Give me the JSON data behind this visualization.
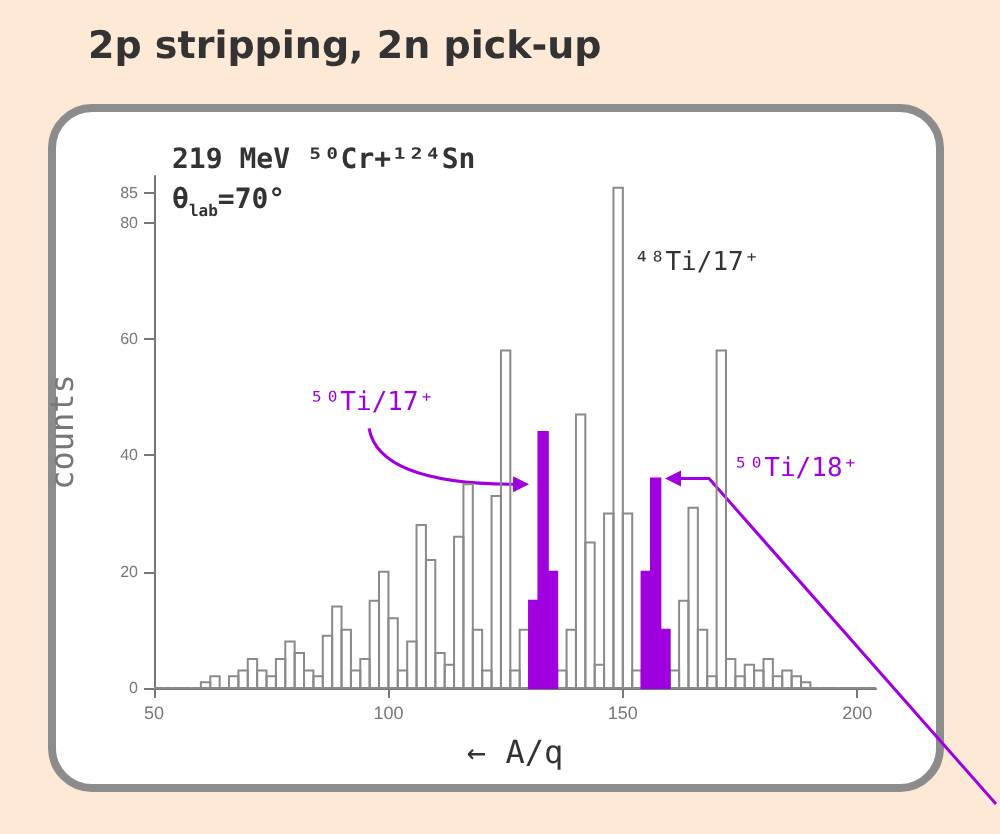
{
  "chart_data": {
    "type": "histogram",
    "title": "2p stripping, 2n pick-up",
    "xlabel": "← A/q",
    "ylabel": "counts",
    "bins": [
      50,
      52,
      54,
      56,
      58,
      60,
      62,
      64,
      66,
      68,
      70,
      72,
      74,
      76,
      78,
      80,
      82,
      84,
      86,
      88,
      90,
      92,
      94,
      96,
      98,
      100,
      102,
      104,
      106,
      108,
      110,
      112,
      114,
      116,
      118,
      120,
      122,
      124,
      126,
      128,
      130,
      132,
      134,
      136,
      138,
      140,
      142,
      144,
      146,
      148,
      150,
      152,
      154,
      156,
      158,
      160,
      162,
      164,
      166,
      168,
      170,
      172,
      174,
      176,
      178,
      180,
      182,
      184,
      186,
      188,
      190,
      192,
      194,
      196,
      198,
      200,
      202,
      204
    ],
    "series": [
      {
        "color": "#8a8a8a",
        "values": [
          0,
          0,
          0,
          0,
          0,
          1,
          2,
          0,
          2,
          3,
          5,
          3,
          2,
          5,
          8,
          6,
          3,
          2,
          9,
          14,
          10,
          3,
          5,
          15,
          20,
          12,
          3,
          8,
          28,
          22,
          6,
          4,
          26,
          35,
          10,
          3,
          33,
          58,
          3,
          10,
          null,
          null,
          null,
          3,
          10,
          47,
          25,
          4,
          30,
          86,
          30,
          3,
          null,
          null,
          null,
          3,
          15,
          31,
          10,
          2,
          58,
          5,
          2,
          4,
          3,
          5,
          2,
          3,
          2,
          1,
          0,
          0,
          0,
          0,
          0,
          0,
          0
        ]
      },
      {
        "color": "#a000e0",
        "values": [
          null,
          null,
          null,
          null,
          null,
          null,
          null,
          null,
          null,
          null,
          null,
          null,
          null,
          null,
          null,
          null,
          null,
          null,
          null,
          null,
          null,
          null,
          null,
          null,
          null,
          null,
          null,
          null,
          null,
          null,
          null,
          null,
          null,
          null,
          null,
          null,
          null,
          null,
          null,
          null,
          15,
          44,
          20,
          null,
          null,
          null,
          null,
          null,
          null,
          null,
          null,
          null,
          20,
          36,
          10,
          null,
          null,
          null,
          null,
          null,
          null,
          null,
          null,
          null,
          null,
          null,
          null,
          null,
          null,
          null,
          null,
          null,
          null,
          null,
          null,
          null,
          null
        ]
      }
    ],
    "xlim": [
      50,
      204
    ],
    "xticks": [
      50,
      100,
      150,
      200
    ],
    "ylim": [
      0,
      88
    ],
    "yticks": [
      0,
      20,
      40,
      60,
      80,
      85
    ],
    "annotations": [
      "219 MeV ⁵⁰Cr+¹²⁴Sn",
      "θ$_{lab}$=70°",
      {
        "text": "⁴⁸Ti/17⁺",
        "x": 149,
        "y": 86
      },
      {
        "text": "⁵⁰Ti/17⁺",
        "x": 130,
        "y": 35
      },
      {
        "text": "⁵⁰Ti/18⁺",
        "x": 159,
        "y": 36
      }
    ]
  }
}
